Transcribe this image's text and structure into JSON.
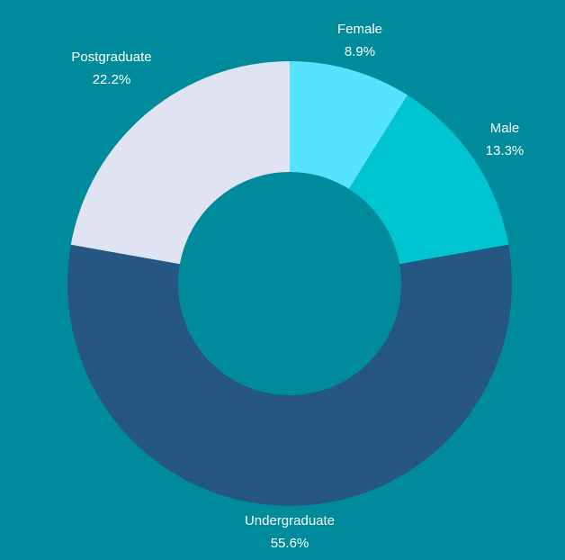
{
  "chart_data": {
    "type": "pie",
    "categories": [
      "Female",
      "Male",
      "Undergraduate",
      "Postgraduate"
    ],
    "values": [
      8.9,
      13.3,
      55.6,
      22.2
    ],
    "value_labels": [
      "8.9%",
      "13.3%",
      "55.6%",
      "22.2%"
    ],
    "colors": [
      "#56e3ff",
      "#00c4cf",
      "#265783",
      "#e0e3f1"
    ],
    "background": "#008b9d",
    "donut": true,
    "start": "top",
    "direction": "clockwise",
    "legend": "none"
  }
}
